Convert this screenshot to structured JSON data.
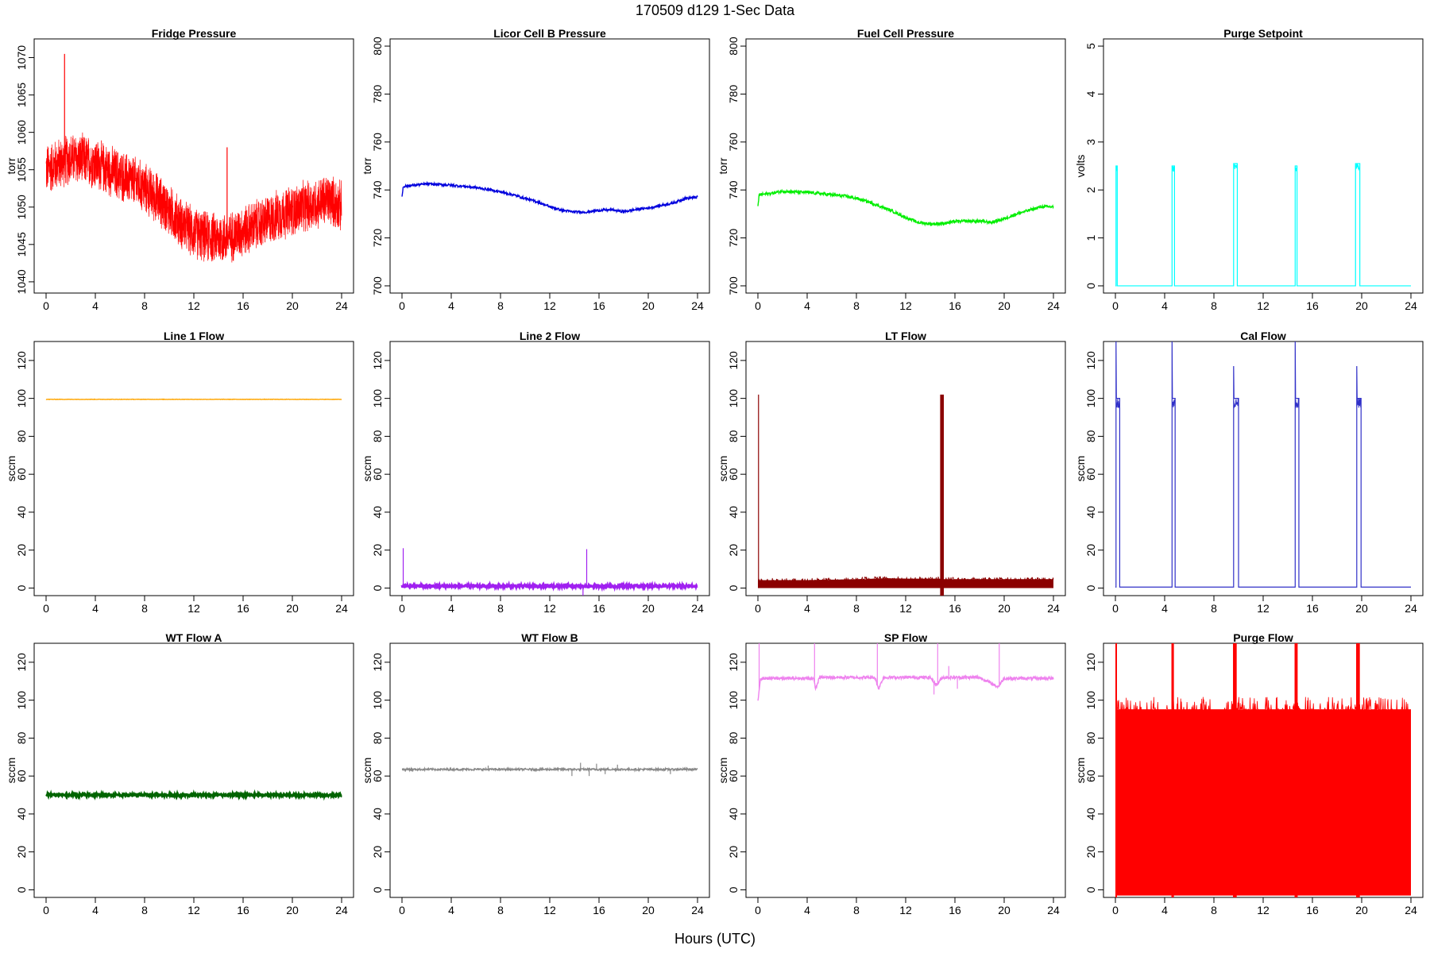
{
  "figure": {
    "title": "170509   d129   1-Sec Data",
    "xlabel": "Hours (UTC)"
  },
  "chart_data": [
    {
      "type": "line",
      "title": "Fridge Pressure",
      "ylabel": "torr",
      "color": "#ff0000",
      "style": "noisy",
      "xlim": [
        0,
        24
      ],
      "ylim": [
        1038.5,
        1072.5
      ],
      "xticks": [
        0,
        4,
        8,
        12,
        16,
        20,
        24
      ],
      "yticks": [
        1040,
        1045,
        1050,
        1055,
        1060,
        1065,
        1070
      ],
      "x": [
        0,
        1,
        2,
        3,
        4,
        5,
        6,
        7,
        8,
        9,
        10,
        11,
        12,
        13,
        14,
        15,
        16,
        17,
        18,
        19,
        20,
        21,
        22,
        23,
        24
      ],
      "y": [
        1055,
        1055.8,
        1056.5,
        1056.3,
        1055.8,
        1055,
        1054.2,
        1053.5,
        1052.5,
        1051.2,
        1049.5,
        1047.8,
        1046.5,
        1046,
        1045.8,
        1046,
        1046.8,
        1047.5,
        1048.2,
        1049,
        1049.5,
        1050,
        1050.5,
        1051,
        1050
      ],
      "noise": 3.8,
      "spikes": [
        {
          "x": 1.5,
          "y": 1070.5
        },
        {
          "x": 14.7,
          "y": 1058
        }
      ]
    },
    {
      "type": "line",
      "title": "Licor Cell B Pressure",
      "ylabel": "torr",
      "color": "#0000dd",
      "style": "line",
      "xlim": [
        0,
        24
      ],
      "ylim": [
        697,
        803
      ],
      "xticks": [
        0,
        4,
        8,
        12,
        16,
        20,
        24
      ],
      "yticks": [
        700,
        720,
        740,
        760,
        780,
        800
      ],
      "x": [
        0,
        0.1,
        1,
        2,
        3,
        4,
        5,
        6,
        7,
        8,
        9,
        10,
        11,
        12,
        13,
        14,
        15,
        16,
        17,
        18,
        19,
        20,
        21,
        22,
        23,
        24
      ],
      "y": [
        737,
        741.5,
        742,
        742.5,
        742.3,
        742,
        741.5,
        741,
        740.2,
        739.2,
        738,
        736.5,
        735,
        733,
        731.5,
        730.8,
        730.8,
        731.5,
        731.7,
        731,
        731.8,
        732.5,
        733.5,
        734.5,
        736.5,
        737
      ],
      "noise": 0.5,
      "spikes": []
    },
    {
      "type": "line",
      "title": "Fuel Cell Pressure",
      "ylabel": "torr",
      "color": "#00ee00",
      "style": "line",
      "xlim": [
        0,
        24
      ],
      "ylim": [
        697,
        803
      ],
      "xticks": [
        0,
        4,
        8,
        12,
        16,
        20,
        24
      ],
      "yticks": [
        700,
        720,
        740,
        760,
        780,
        800
      ],
      "x": [
        0,
        0.1,
        1,
        2,
        3,
        4,
        5,
        6,
        7,
        8,
        9,
        10,
        11,
        12,
        13,
        14,
        15,
        16,
        17,
        18,
        19,
        20,
        21,
        22,
        23,
        24
      ],
      "y": [
        733,
        738,
        738.5,
        739.5,
        739.2,
        739,
        738.5,
        738,
        737.5,
        736.5,
        735,
        733,
        731,
        728.5,
        726.5,
        725.8,
        726,
        726.8,
        727,
        727,
        726.5,
        728,
        730,
        731.5,
        733,
        733
      ],
      "noise": 0.6,
      "spikes": []
    },
    {
      "type": "line",
      "title": "Purge Setpoint",
      "ylabel": "volts",
      "color": "#00ffff",
      "style": "pulses",
      "xlim": [
        0,
        24
      ],
      "ylim": [
        -0.15,
        5.15
      ],
      "xticks": [
        0,
        4,
        8,
        12,
        16,
        20,
        24
      ],
      "yticks": [
        0,
        1,
        2,
        3,
        4,
        5
      ],
      "baseline": 0,
      "pulses": [
        {
          "start": 0.05,
          "end": 0.15,
          "level": 2.5
        },
        {
          "start": 4.6,
          "end": 4.8,
          "level": 2.5
        },
        {
          "start": 9.6,
          "end": 9.9,
          "level": 2.55
        },
        {
          "start": 14.6,
          "end": 14.75,
          "level": 2.5
        },
        {
          "start": 19.5,
          "end": 19.85,
          "level": 2.55
        }
      ],
      "spikes": []
    },
    {
      "type": "line",
      "title": "Line 1 Flow",
      "ylabel": "sccm",
      "color": "#ffa500",
      "style": "flat",
      "xlim": [
        0,
        24
      ],
      "ylim": [
        -4,
        130
      ],
      "xticks": [
        0,
        4,
        8,
        12,
        16,
        20,
        24
      ],
      "yticks": [
        0,
        20,
        40,
        60,
        80,
        100,
        120
      ],
      "x": [
        0,
        24
      ],
      "y": [
        99.5,
        99.5
      ],
      "noise": 0.1,
      "spikes": []
    },
    {
      "type": "line",
      "title": "Line 2 Flow",
      "ylabel": "sccm",
      "color": "#a020f0",
      "style": "thick",
      "xlim": [
        0,
        24
      ],
      "ylim": [
        -4,
        130
      ],
      "xticks": [
        0,
        4,
        8,
        12,
        16,
        20,
        24
      ],
      "yticks": [
        0,
        20,
        40,
        60,
        80,
        100,
        120
      ],
      "x": [
        0,
        4,
        8,
        12,
        16,
        20,
        24
      ],
      "y": [
        1,
        1,
        1,
        1,
        1,
        1,
        1
      ],
      "noise": 0.6,
      "spikes": [
        {
          "x": 0.1,
          "y": 21
        },
        {
          "x": 14.7,
          "y": -4
        },
        {
          "x": 15.0,
          "y": 20.5
        }
      ]
    },
    {
      "type": "line",
      "title": "LT Flow",
      "ylabel": "sccm",
      "color": "#8b0000",
      "style": "band",
      "xlim": [
        0,
        24
      ],
      "ylim": [
        -4,
        130
      ],
      "xticks": [
        0,
        4,
        8,
        12,
        16,
        20,
        24
      ],
      "yticks": [
        0,
        20,
        40,
        60,
        80,
        100,
        120
      ],
      "x": [
        0,
        4,
        8,
        10.5,
        12,
        14.7,
        15.1,
        18,
        24
      ],
      "y": [
        2.5,
        2.5,
        2.8,
        3.2,
        3,
        3,
        2.5,
        2.5,
        2.5
      ],
      "band_low": [
        0,
        0,
        0,
        0,
        0,
        0,
        0,
        0,
        0
      ],
      "band_high": [
        4,
        4,
        4.5,
        5,
        4.8,
        4.8,
        4.5,
        4.5,
        4.5
      ],
      "pulses": [
        {
          "start": 14.8,
          "end": 15.1,
          "level": 102
        }
      ],
      "spikes": [
        {
          "x": 0.05,
          "y": 102
        }
      ]
    },
    {
      "type": "line",
      "title": "Cal Flow",
      "ylabel": "sccm",
      "color": "#3030c8",
      "style": "pulses",
      "xlim": [
        0,
        24
      ],
      "ylim": [
        -4,
        130
      ],
      "xticks": [
        0,
        4,
        8,
        12,
        16,
        20,
        24
      ],
      "yticks": [
        0,
        20,
        40,
        60,
        80,
        100,
        120
      ],
      "baseline": 0.5,
      "pulses": [
        {
          "start": 0.05,
          "end": 0.35,
          "level": 100,
          "peak": 130
        },
        {
          "start": 4.6,
          "end": 4.85,
          "level": 100,
          "peak": 130
        },
        {
          "start": 9.6,
          "end": 10.0,
          "level": 100,
          "peak": 117
        },
        {
          "start": 14.6,
          "end": 14.9,
          "level": 100,
          "peak": 130
        },
        {
          "start": 19.6,
          "end": 19.95,
          "level": 100,
          "peak": 117
        }
      ],
      "spikes": []
    },
    {
      "type": "line",
      "title": "WT Flow A",
      "ylabel": "sccm",
      "color": "#006400",
      "style": "thick",
      "xlim": [
        0,
        24
      ],
      "ylim": [
        -4,
        130
      ],
      "xticks": [
        0,
        4,
        8,
        12,
        16,
        20,
        24
      ],
      "yticks": [
        0,
        20,
        40,
        60,
        80,
        100,
        120
      ],
      "x": [
        0,
        24
      ],
      "y": [
        50,
        50
      ],
      "noise": 0.6,
      "spikes": []
    },
    {
      "type": "line",
      "title": "WT Flow B",
      "ylabel": "sccm",
      "color": "#888888",
      "style": "line",
      "xlim": [
        0,
        24
      ],
      "ylim": [
        -4,
        130
      ],
      "xticks": [
        0,
        4,
        8,
        12,
        16,
        20,
        24
      ],
      "yticks": [
        0,
        20,
        40,
        60,
        80,
        100,
        120
      ],
      "x": [
        0,
        7,
        13,
        14,
        15,
        16,
        17,
        18,
        24
      ],
      "y": [
        63.5,
        63.5,
        63.5,
        63.5,
        63.5,
        63.5,
        63.5,
        63.5,
        63.5
      ],
      "noise": 0.5,
      "spikes": [
        {
          "x": 7,
          "y": 65.5
        },
        {
          "x": 13.8,
          "y": 60
        },
        {
          "x": 14.5,
          "y": 67
        },
        {
          "x": 15.2,
          "y": 60
        },
        {
          "x": 15.8,
          "y": 66.5
        },
        {
          "x": 16.5,
          "y": 61
        },
        {
          "x": 17.5,
          "y": 66
        },
        {
          "x": 21.8,
          "y": 61
        }
      ]
    },
    {
      "type": "line",
      "title": "SP Flow",
      "ylabel": "sccm",
      "color": "#ee82ee",
      "style": "line",
      "xlim": [
        0,
        24
      ],
      "ylim": [
        -4,
        130
      ],
      "xticks": [
        0,
        4,
        8,
        12,
        16,
        20,
        24
      ],
      "yticks": [
        0,
        20,
        40,
        60,
        80,
        100,
        120
      ],
      "x": [
        0,
        0.2,
        2,
        4.5,
        4.7,
        5.0,
        9.5,
        9.8,
        10.2,
        14,
        14.5,
        15,
        16,
        18,
        19.5,
        20,
        22,
        24
      ],
      "y": [
        99,
        111.5,
        111.5,
        111.5,
        106,
        112,
        112,
        106,
        112,
        112,
        108,
        112,
        112,
        112,
        107,
        111.5,
        111.5,
        111.5
      ],
      "noise": 0.8,
      "spikes": [
        {
          "x": 0.1,
          "y": 130
        },
        {
          "x": 4.6,
          "y": 130
        },
        {
          "x": 9.7,
          "y": 130
        },
        {
          "x": 14.6,
          "y": 130
        },
        {
          "x": 19.6,
          "y": 130
        },
        {
          "x": 14.3,
          "y": 103
        },
        {
          "x": 15.5,
          "y": 118
        },
        {
          "x": 16.2,
          "y": 106
        }
      ]
    },
    {
      "type": "line",
      "title": "Purge Flow",
      "ylabel": "sccm",
      "color": "#ff0000",
      "style": "band",
      "xlim": [
        0,
        24
      ],
      "ylim": [
        -4,
        130
      ],
      "xticks": [
        0,
        4,
        8,
        12,
        16,
        20,
        24
      ],
      "yticks": [
        0,
        20,
        40,
        60,
        80,
        100,
        120
      ],
      "x": [
        0,
        24
      ],
      "y": [
        50,
        50
      ],
      "band_low": [
        -3,
        -3
      ],
      "band_high": [
        95,
        95
      ],
      "pulses": [
        {
          "start": 0,
          "end": 0.1,
          "level": 130
        },
        {
          "start": 4.55,
          "end": 4.75,
          "level": 130
        },
        {
          "start": 9.55,
          "end": 9.85,
          "level": 130
        },
        {
          "start": 14.55,
          "end": 14.8,
          "level": 130
        },
        {
          "start": 19.55,
          "end": 19.85,
          "level": 130
        }
      ],
      "spikes": []
    }
  ]
}
